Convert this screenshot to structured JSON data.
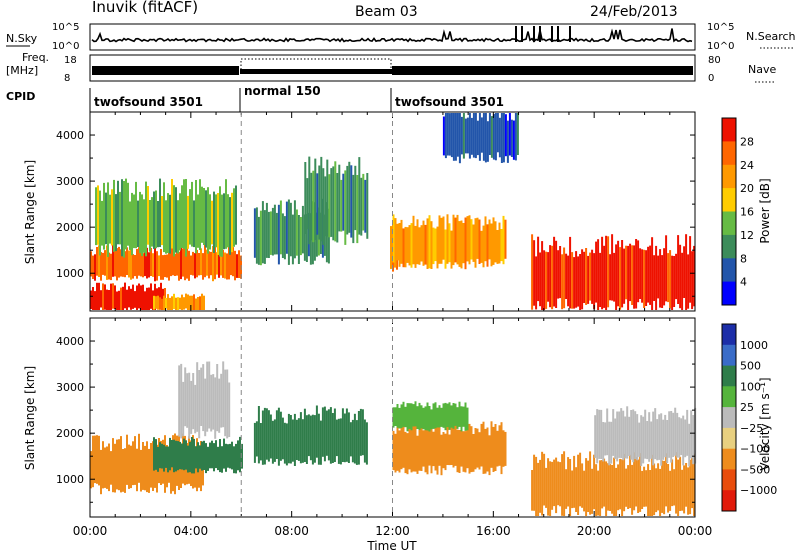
{
  "header": {
    "title": "Inuvik (fitACF)",
    "beam": "Beam 03",
    "date": "24/Feb/2013"
  },
  "panels": {
    "nsky": {
      "label": "N.Sky",
      "ticks": [
        "10^5",
        "10^0"
      ],
      "right_ticks": [
        "10^5",
        "10^0"
      ],
      "right_label": "N.Search"
    },
    "freq": {
      "label": "Freq.",
      "unit": "[MHz]",
      "ticks": [
        "18",
        "8"
      ],
      "right_ticks": [
        "80",
        "0"
      ],
      "right_label": "Nave"
    },
    "cpid": {
      "label": "CPID",
      "segments": [
        {
          "label": "twofsound 3501",
          "start": "00:00",
          "end": "06:00"
        },
        {
          "label": "normal 150",
          "start": "06:00",
          "end": "12:00"
        },
        {
          "label": "twofsound 3501",
          "start": "12:00",
          "end": "24:00"
        }
      ]
    }
  },
  "colors": {
    "power": [
      "#0000ff",
      "#2255aa",
      "#3c8c5a",
      "#66bb44",
      "#ffcc00",
      "#ff9900",
      "#ff6600",
      "#ee1100"
    ],
    "velocity": [
      "#1c2ea8",
      "#3a6cc8",
      "#2f7d4a",
      "#55b43c",
      "#bbbbbb",
      "#e8d080",
      "#ee8c1c",
      "#e84c0c",
      "#e11a0a"
    ]
  },
  "chart_data": [
    {
      "type": "heatmap",
      "title": "Power",
      "xlabel": "",
      "ylabel": "Slant Range [km]",
      "xlim": [
        0,
        24
      ],
      "ylim": [
        180,
        4500
      ],
      "x_ticks": [
        "00:00",
        "04:00",
        "08:00",
        "12:00",
        "16:00",
        "20:00",
        "00:00"
      ],
      "y_ticks": [
        "1000",
        "2000",
        "3000",
        "4000"
      ],
      "colorbar": {
        "label": "Power [dB]",
        "ticks": [
          "4",
          "8",
          "12",
          "16",
          "20",
          "24",
          "28"
        ],
        "range": [
          0,
          32
        ]
      },
      "series": [
        {
          "x": [
            0,
            6
          ],
          "y": [
            900,
            1500
          ],
          "value": 26
        },
        {
          "x": [
            0,
            3
          ],
          "y": [
            200,
            700
          ],
          "value": 30
        },
        {
          "x": [
            0.2,
            5.8
          ],
          "y": [
            1500,
            2800
          ],
          "value": 14
        },
        {
          "x": [
            2.5,
            4.5
          ],
          "y": [
            200,
            500
          ],
          "value": 22
        },
        {
          "x": [
            6.5,
            9.5
          ],
          "y": [
            1300,
            2400
          ],
          "value": 10
        },
        {
          "x": [
            8.5,
            11
          ],
          "y": [
            1800,
            3300
          ],
          "value": 9
        },
        {
          "x": [
            11.9,
            12.2
          ],
          "y": [
            1000,
            2000
          ],
          "value": 27
        },
        {
          "x": [
            12,
            16.5
          ],
          "y": [
            1200,
            2100
          ],
          "value": 20
        },
        {
          "x": [
            14,
            17
          ],
          "y": [
            3500,
            4500
          ],
          "value": 6
        },
        {
          "x": [
            17.5,
            24
          ],
          "y": [
            300,
            1600
          ],
          "value": 28
        }
      ]
    },
    {
      "type": "heatmap",
      "title": "Velocity",
      "xlabel": "Time UT",
      "ylabel": "Slant Range [km]",
      "xlim": [
        0,
        24
      ],
      "ylim": [
        180,
        4500
      ],
      "x_ticks": [
        "00:00",
        "04:00",
        "08:00",
        "12:00",
        "16:00",
        "20:00",
        "00:00"
      ],
      "y_ticks": [
        "1000",
        "2000",
        "3000",
        "4000"
      ],
      "colorbar": {
        "label": "Velocity [m s⁻¹]",
        "ticks": [
          "1000",
          "500",
          "100",
          "25",
          "−25",
          "−100",
          "−500",
          "−1000"
        ],
        "range": [
          -1000,
          1000
        ]
      },
      "series": [
        {
          "x": [
            0,
            4.5
          ],
          "y": [
            800,
            1800
          ],
          "value": -200
        },
        {
          "x": [
            2.5,
            6
          ],
          "y": [
            1200,
            1800
          ],
          "value": 150
        },
        {
          "x": [
            3.5,
            5.5
          ],
          "y": [
            2000,
            3300
          ],
          "value": 0
        },
        {
          "x": [
            6.5,
            11
          ],
          "y": [
            1400,
            2400
          ],
          "value": 120
        },
        {
          "x": [
            12,
            16.5
          ],
          "y": [
            1200,
            2100
          ],
          "value": -250
        },
        {
          "x": [
            12,
            15
          ],
          "y": [
            2100,
            2600
          ],
          "value": 80
        },
        {
          "x": [
            17.5,
            24
          ],
          "y": [
            300,
            1400
          ],
          "value": -150
        },
        {
          "x": [
            20,
            24
          ],
          "y": [
            1400,
            2400
          ],
          "value": 0
        }
      ]
    }
  ]
}
